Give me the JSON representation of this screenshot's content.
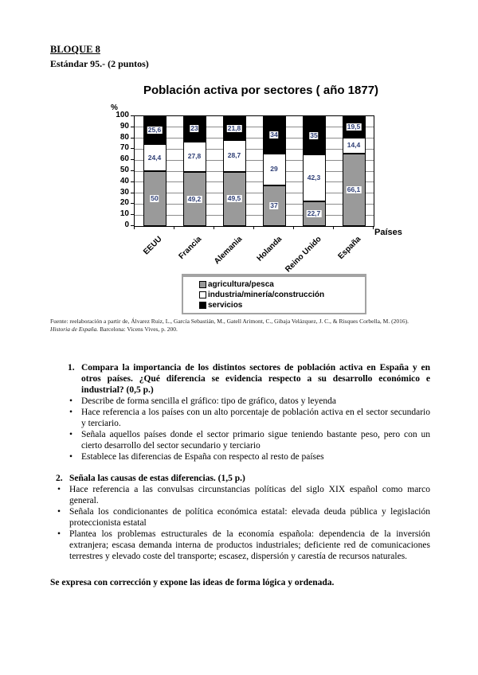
{
  "header": {
    "block_title": "BLOQUE 8",
    "standard_line": "Estándar 95.- (2 puntos)"
  },
  "chart_data": {
    "type": "bar",
    "stacked": true,
    "title": "Población activa por sectores ( año 1877)",
    "ylabel": "%",
    "xlabel": "Países",
    "ylim": [
      0,
      100
    ],
    "yticks": [
      0,
      10,
      20,
      30,
      40,
      50,
      60,
      70,
      80,
      90,
      100
    ],
    "grid": true,
    "legend_position": "bottom",
    "categories": [
      "EEUU",
      "Francia",
      "Alemania",
      "Holanda",
      "Reino Unido",
      "España"
    ],
    "series": [
      {
        "name": "agricultura/pesca",
        "color": "#9a9a9a",
        "values": [
          50,
          49.2,
          49.5,
          37,
          22.7,
          66.1
        ],
        "labels": [
          "50",
          "49,2",
          "49,5",
          "37",
          "22,7",
          "66,1"
        ]
      },
      {
        "name": "industria/minería/construcción",
        "color": "#ffffff",
        "values": [
          24.4,
          27.8,
          28.7,
          29,
          42.3,
          14.4
        ],
        "labels": [
          "24,4",
          "27,8",
          "28,7",
          "29",
          "42,3",
          "14,4"
        ]
      },
      {
        "name": "servicios",
        "color": "#000000",
        "values": [
          25.6,
          23,
          21.8,
          34,
          35,
          19.5
        ],
        "labels": [
          "25,6",
          "23",
          "21,8",
          "34",
          "35",
          "19,5"
        ]
      }
    ],
    "label_color": "#2e3e75"
  },
  "source": {
    "line1": "Fuente: reelaboración a partir de, Álvarez Ruiz, L., García Sebastián, M., Gatell Arimont, C., Gibaja Velázquez, J. C., & Risques Corbella, M. (2016).",
    "line2_italic": "Historia de España.",
    "line2_rest": " Barcelona: Vicens Vives, p. 200."
  },
  "questions": [
    {
      "number": "1.",
      "text": "Compara la importancia de los distintos sectores de población activa en España y en otros países. ¿Qué diferencia se evidencia respecto a su desarrollo económico e industrial? (0,5 p.)",
      "bullets": [
        "Describe de forma sencilla el gráfico: tipo de gráfico, datos y leyenda",
        "Hace referencia a los países con un alto porcentaje de población activa en el sector secundario y terciario.",
        "Señala aquellos países donde el sector primario sigue teniendo bastante peso, pero con un cierto desarrollo del sector secundario y terciario",
        "Establece las diferencias de España con respecto al resto de países"
      ]
    },
    {
      "number": "2.",
      "text": "Señala las causas de estas diferencias. (1,5 p.)",
      "bullets": [
        "Hace referencia a las convulsas circunstancias políticas del siglo XIX español como marco general.",
        "Señala los condicionantes de política económica estatal: elevada deuda pública y legislación proteccionista estatal",
        "Plantea los problemas estructurales de la economía española: dependencia de la inversión extranjera; escasa demanda interna de productos industriales; deficiente red de comunicaciones terrestres y elevado coste del transporte; escasez, dispersión y carestía de recursos naturales."
      ]
    }
  ],
  "footer": "Se expresa con corrección y expone las ideas de forma lógica y ordenada."
}
